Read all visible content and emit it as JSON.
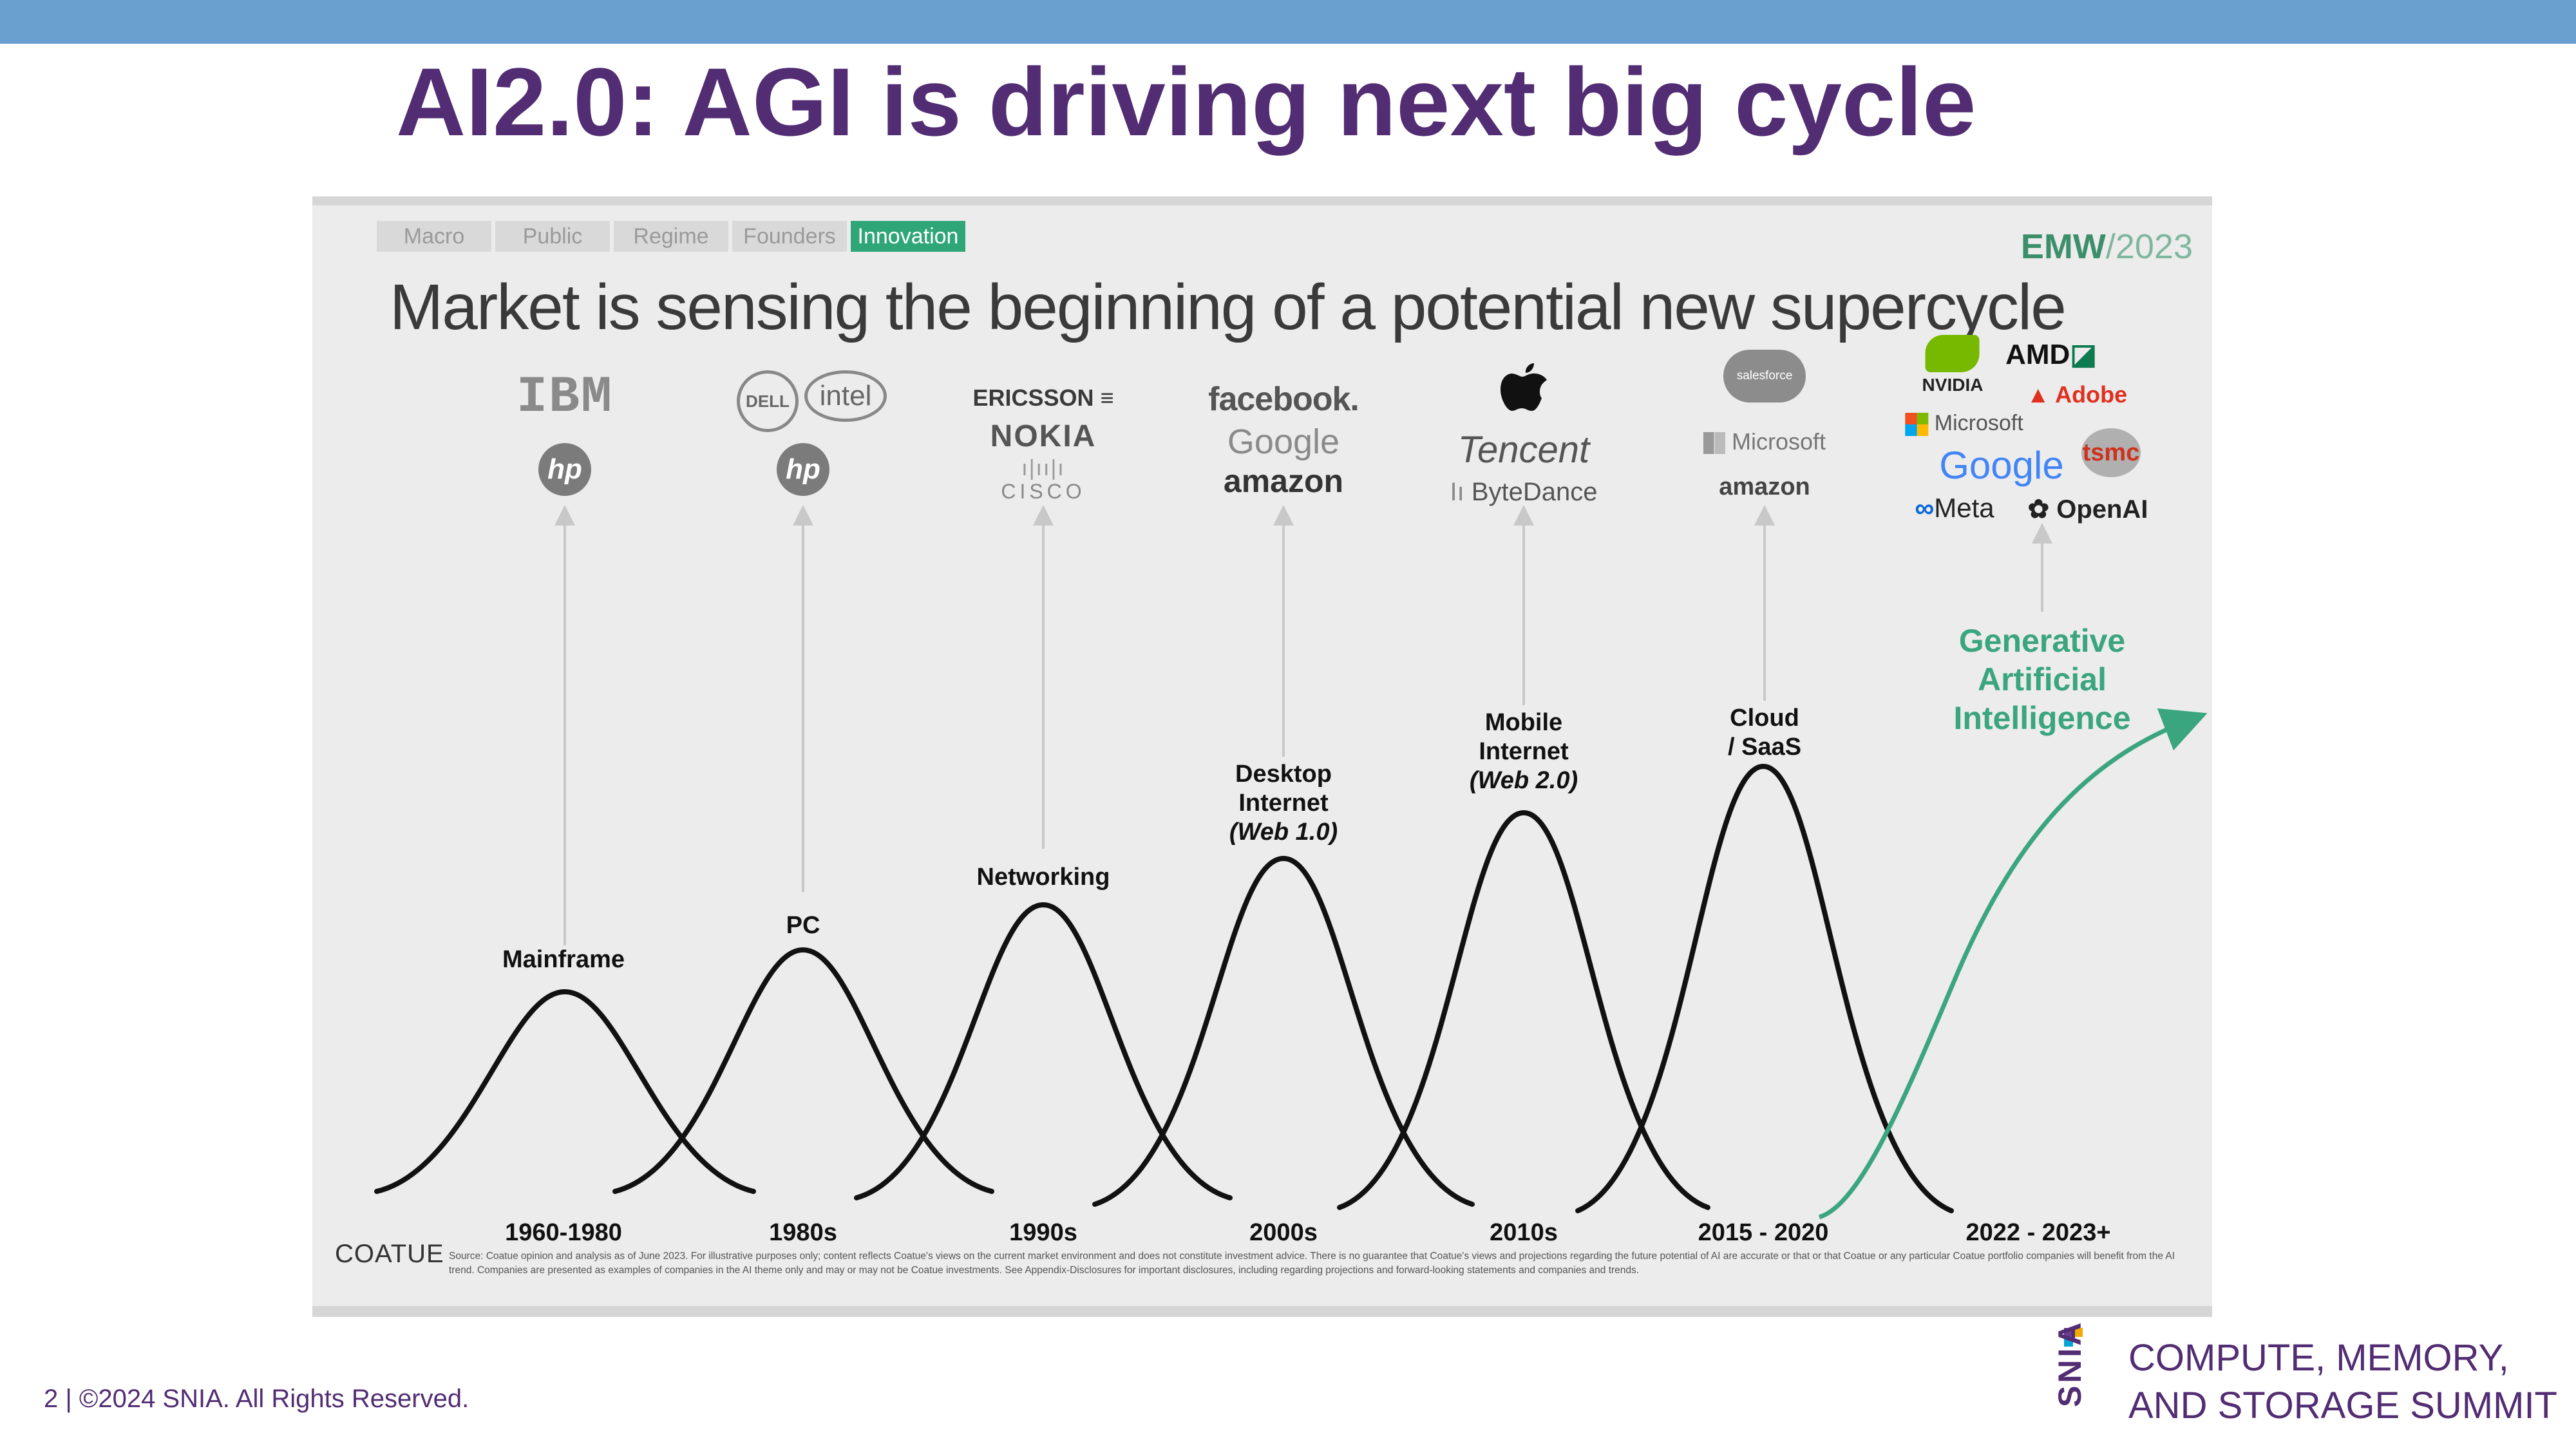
{
  "slide": {
    "title": "AI2.0: AGI is driving next big cycle",
    "footer": "2 | ©2024 SNIA. All Rights Reserved.",
    "summit_line1": "COMPUTE, MEMORY,",
    "summit_line2": "AND STORAGE SUMMIT",
    "snia": "SNIA"
  },
  "panel": {
    "tabs": [
      {
        "label": "Macro",
        "active": false
      },
      {
        "label": "Public",
        "active": false
      },
      {
        "label": "Regime",
        "active": false
      },
      {
        "label": "Founders",
        "active": false
      },
      {
        "label": "Innovation",
        "active": true
      }
    ],
    "brand": "EMW",
    "brand_year": "/2023",
    "headline": "Market is sensing the beginning of a potential new supercycle",
    "source_owner": "COATUE",
    "source_note": "Source: Coatue opinion and analysis as of June 2023. For illustrative purposes only; content reflects Coatue's views on the current market environment and does not constitute investment advice. There is no guarantee that Coatue's views and projections regarding the future potential of AI are accurate or that or that Coatue or any particular Coatue portfolio companies will benefit from the AI trend. Companies are presented as examples of companies in the AI theme only and may or may not be Coatue investments. See Appendix-Disclosures for important disclosures, including regarding projections and forward-looking statements and companies and trends."
  },
  "eras": [
    {
      "label": "Mainframe",
      "period": "1960-1980",
      "logos": [
        "IBM",
        "hp"
      ]
    },
    {
      "label": "PC",
      "period": "1980s",
      "logos": [
        "DELL",
        "intel",
        "hp"
      ]
    },
    {
      "label": "Networking",
      "period": "1990s",
      "logos": [
        "ERICSSON",
        "NOKIA",
        "CISCO"
      ]
    },
    {
      "label1": "Desktop",
      "label2": "Internet",
      "label3": "(Web 1.0)",
      "period": "2000s",
      "logos": [
        "facebook.",
        "Google",
        "amazon"
      ]
    },
    {
      "label1": "Mobile",
      "label2": "Internet",
      "label3": "(Web 2.0)",
      "period": "2010s",
      "logos": [
        "Tencent",
        "ByteDance"
      ]
    },
    {
      "label1": "Cloud",
      "label2": "/ SaaS",
      "period": "2015 - 2020",
      "logos": [
        "salesforce",
        "Microsoft",
        "amazon"
      ]
    }
  ],
  "current_era": {
    "line1": "Generative",
    "line2": "Artificial",
    "line3": "Intelligence",
    "period": "2022 - 2023+",
    "logos": [
      "NVIDIA",
      "AMD",
      "Adobe",
      "Microsoft",
      "Google",
      "tsmc",
      "Meta",
      "OpenAI"
    ]
  },
  "colors": {
    "title": "#522d73",
    "topbar": "#6aa0cf",
    "accent_green": "#3aa57e",
    "curve": "#111111",
    "panel_bg": "#ececec"
  },
  "icons": [
    "apple-icon",
    "bytedance-icon",
    "openai-icon",
    "meta-icon",
    "microsoft-icon",
    "nvidia-icon",
    "adobe-icon",
    "amd-icon"
  ]
}
